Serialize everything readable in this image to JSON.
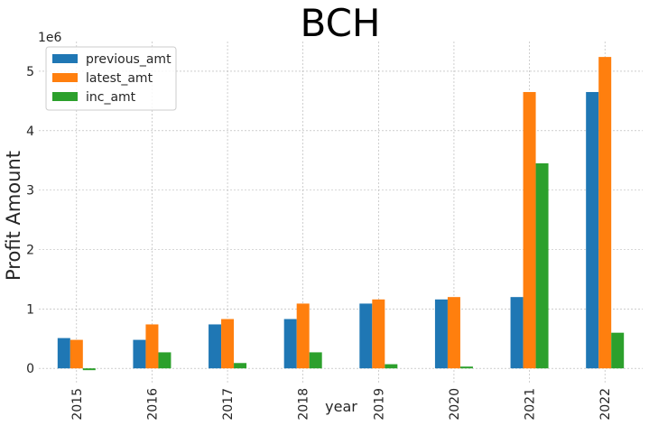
{
  "chart_data": {
    "type": "bar",
    "title": "BCH",
    "xlabel": "year",
    "ylabel": "Profit Amount",
    "y_offset_text": "1e6",
    "categories": [
      "2015",
      "2016",
      "2017",
      "2018",
      "2019",
      "2020",
      "2021",
      "2022"
    ],
    "series": [
      {
        "name": "previous_amt",
        "color": "#1f77b4",
        "values": [
          510000,
          480000,
          740000,
          830000,
          1090000,
          1160000,
          1200000,
          4650000
        ]
      },
      {
        "name": "latest_amt",
        "color": "#ff7f0e",
        "values": [
          480000,
          740000,
          830000,
          1090000,
          1160000,
          1200000,
          4650000,
          5240000
        ]
      },
      {
        "name": "inc_amt",
        "color": "#2ca02c",
        "values": [
          -30000,
          270000,
          90000,
          270000,
          70000,
          30000,
          3450000,
          600000
        ]
      }
    ],
    "ylim": [
      -240000,
      5500000
    ],
    "yticks": [
      0,
      1,
      2,
      3,
      4,
      5
    ],
    "grid": true,
    "legend_position": "top-left"
  }
}
